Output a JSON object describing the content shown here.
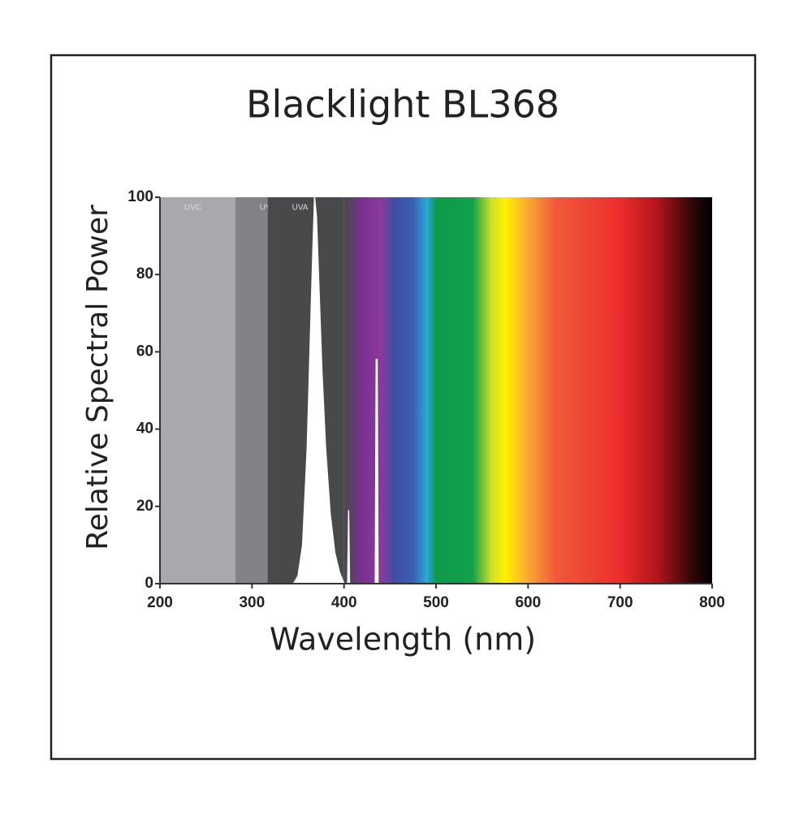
{
  "chart_data": {
    "type": "area",
    "title": "Blacklight BL368",
    "xlabel": "Wavelength (nm)",
    "ylabel": "Relative Spectral Power",
    "xlim": [
      200,
      800
    ],
    "ylim": [
      0,
      100
    ],
    "xticks": [
      200,
      300,
      400,
      500,
      600,
      700,
      800
    ],
    "yticks": [
      0,
      20,
      40,
      60,
      80,
      100
    ],
    "grid": false,
    "bands": [
      {
        "name": "UVC",
        "range": [
          200,
          282
        ],
        "color": "#a7a9ac"
      },
      {
        "name": "UVB",
        "range": [
          282,
          317
        ],
        "color": "#808285"
      },
      {
        "name": "UVA",
        "range": [
          317,
          400
        ],
        "color": "#48494b"
      }
    ],
    "spectrum": [
      {
        "wavelength": 400,
        "color": "#48494b"
      },
      {
        "wavelength": 420,
        "color": "#7b2f93"
      },
      {
        "wavelength": 440,
        "color": "#8b3a9c"
      },
      {
        "wavelength": 455,
        "color": "#3d4fa3"
      },
      {
        "wavelength": 475,
        "color": "#3a5fb0"
      },
      {
        "wavelength": 490,
        "color": "#2aa8dc"
      },
      {
        "wavelength": 500,
        "color": "#0e9a4a"
      },
      {
        "wavelength": 540,
        "color": "#13a14a"
      },
      {
        "wavelength": 560,
        "color": "#cde02a"
      },
      {
        "wavelength": 575,
        "color": "#fff200"
      },
      {
        "wavelength": 600,
        "color": "#f8a832"
      },
      {
        "wavelength": 630,
        "color": "#f15a3a"
      },
      {
        "wavelength": 700,
        "color": "#ec2d2d"
      },
      {
        "wavelength": 740,
        "color": "#b3151c"
      },
      {
        "wavelength": 780,
        "color": "#2a0606"
      },
      {
        "wavelength": 800,
        "color": "#000000"
      }
    ],
    "x": [
      345,
      350,
      355,
      360,
      363,
      366,
      368,
      370,
      373,
      376,
      380,
      385,
      390,
      395,
      400,
      404,
      405,
      406,
      434,
      435,
      436,
      437
    ],
    "series": [
      {
        "color": "#ffffff",
        "values": [
          0,
          2,
          10,
          35,
          60,
          85,
          100,
          95,
          75,
          55,
          35,
          18,
          8,
          3,
          0,
          0,
          19,
          0,
          0,
          58,
          58,
          0
        ]
      }
    ]
  }
}
